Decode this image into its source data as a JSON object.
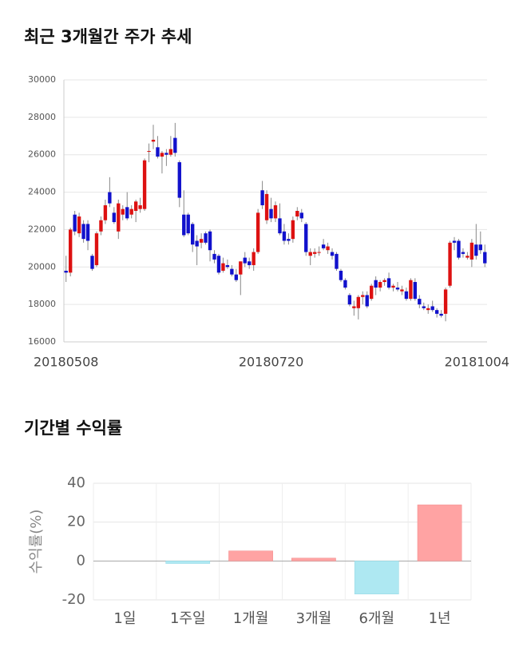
{
  "chart_data": [
    {
      "type": "candlestick",
      "title": "최근 3개월간 주가 추세",
      "up_color": "#dd1111",
      "down_color": "#1111cc",
      "wick_color": "#888888",
      "grid": true,
      "xlim": [
        -0.5,
        96.5
      ],
      "xticks": [
        {
          "value": 0,
          "label": "20180508"
        },
        {
          "value": 47,
          "label": "20180720"
        },
        {
          "value": 96,
          "label": "20181004"
        }
      ],
      "ylim": [
        16000,
        30000
      ],
      "yticks": [
        16000,
        18000,
        20000,
        22000,
        24000,
        26000,
        28000,
        30000
      ],
      "ohlc": [
        [
          19800,
          20600,
          19200,
          19700
        ],
        [
          19700,
          22100,
          19500,
          22000
        ],
        [
          22800,
          23000,
          21700,
          21900
        ],
        [
          21800,
          22900,
          21600,
          22700
        ],
        [
          22300,
          22500,
          21300,
          21500
        ],
        [
          22300,
          22500,
          20900,
          21400
        ],
        [
          20600,
          20700,
          19800,
          19900
        ],
        [
          20100,
          21900,
          20000,
          21800
        ],
        [
          21900,
          22700,
          21700,
          22500
        ],
        [
          22500,
          23600,
          22300,
          23300
        ],
        [
          24000,
          24800,
          23200,
          23400
        ],
        [
          22900,
          23200,
          22300,
          22400
        ],
        [
          21900,
          23600,
          21500,
          23400
        ],
        [
          22800,
          23300,
          22500,
          23100
        ],
        [
          23200,
          24000,
          22500,
          22600
        ],
        [
          22800,
          23300,
          22600,
          23100
        ],
        [
          23000,
          23600,
          22400,
          23500
        ],
        [
          23100,
          23700,
          22900,
          23300
        ],
        [
          23100,
          25800,
          23000,
          25700
        ],
        [
          26200,
          26600,
          25600,
          26200
        ],
        [
          26700,
          27600,
          26300,
          26800
        ],
        [
          26400,
          27000,
          25800,
          25900
        ],
        [
          25900,
          26200,
          25000,
          26100
        ],
        [
          26100,
          26300,
          25400,
          26000
        ],
        [
          26000,
          27000,
          25900,
          26300
        ],
        [
          26900,
          27700,
          25900,
          26100
        ],
        [
          25600,
          25700,
          23200,
          23700
        ],
        [
          22800,
          24100,
          21600,
          21700
        ],
        [
          22800,
          22900,
          21700,
          21800
        ],
        [
          22300,
          22400,
          20800,
          21200
        ],
        [
          21400,
          21700,
          20100,
          21100
        ],
        [
          21300,
          21800,
          21000,
          21500
        ],
        [
          21800,
          21900,
          21200,
          21300
        ],
        [
          21900,
          22000,
          20300,
          20900
        ],
        [
          20700,
          20900,
          20200,
          20400
        ],
        [
          20600,
          20700,
          19600,
          19700
        ],
        [
          19800,
          20500,
          19700,
          20200
        ],
        [
          20100,
          20400,
          19900,
          20000
        ],
        [
          19900,
          20100,
          19500,
          19600
        ],
        [
          19600,
          19900,
          19200,
          19300
        ],
        [
          19600,
          20300,
          18500,
          20300
        ],
        [
          20500,
          20800,
          20000,
          20200
        ],
        [
          20300,
          20500,
          19900,
          20100
        ],
        [
          20100,
          21000,
          19800,
          20800
        ],
        [
          20800,
          23100,
          20700,
          22900
        ],
        [
          24100,
          24600,
          23100,
          23300
        ],
        [
          22500,
          24100,
          22300,
          23900
        ],
        [
          23100,
          23700,
          22400,
          22600
        ],
        [
          22600,
          23500,
          22400,
          23300
        ],
        [
          22600,
          23400,
          21700,
          21800
        ],
        [
          21900,
          22300,
          21200,
          21400
        ],
        [
          21500,
          21800,
          21200,
          21400
        ],
        [
          21500,
          22700,
          21300,
          22500
        ],
        [
          22700,
          23200,
          22500,
          23000
        ],
        [
          22900,
          23100,
          22400,
          22600
        ],
        [
          22300,
          22400,
          20600,
          20800
        ],
        [
          20600,
          21000,
          20100,
          20800
        ],
        [
          20700,
          21000,
          20500,
          20800
        ],
        [
          20800,
          21100,
          20600,
          20800
        ],
        [
          21200,
          21500,
          20900,
          21000
        ],
        [
          20900,
          21300,
          20700,
          21100
        ],
        [
          20800,
          21000,
          20400,
          20600
        ],
        [
          20700,
          20800,
          19800,
          19900
        ],
        [
          19800,
          19900,
          19200,
          19300
        ],
        [
          19300,
          19400,
          18800,
          18900
        ],
        [
          18500,
          18600,
          17900,
          18000
        ],
        [
          17800,
          18200,
          17400,
          17900
        ],
        [
          17800,
          18500,
          17200,
          18400
        ],
        [
          18400,
          18700,
          18000,
          18500
        ],
        [
          18500,
          18700,
          17800,
          17900
        ],
        [
          18300,
          19100,
          18200,
          19000
        ],
        [
          19300,
          19500,
          18500,
          18900
        ],
        [
          18900,
          19300,
          18700,
          19200
        ],
        [
          19200,
          19400,
          19000,
          19300
        ],
        [
          19400,
          19700,
          18800,
          18900
        ],
        [
          18900,
          19100,
          18700,
          19000
        ],
        [
          18900,
          19200,
          18700,
          18800
        ],
        [
          18700,
          19000,
          18500,
          18800
        ],
        [
          18700,
          18900,
          18200,
          18300
        ],
        [
          18300,
          19400,
          18200,
          19300
        ],
        [
          19200,
          19400,
          18200,
          18300
        ],
        [
          18300,
          18500,
          17800,
          18000
        ],
        [
          17900,
          18100,
          17700,
          17800
        ],
        [
          17700,
          18000,
          17500,
          17800
        ],
        [
          17900,
          18200,
          17600,
          17700
        ],
        [
          17700,
          17800,
          17300,
          17500
        ],
        [
          17500,
          17700,
          17300,
          17400
        ],
        [
          17500,
          18900,
          17100,
          18800
        ],
        [
          19000,
          21400,
          18900,
          21300
        ],
        [
          21400,
          21600,
          20900,
          21300
        ],
        [
          21400,
          21500,
          20400,
          20500
        ],
        [
          20800,
          21000,
          20500,
          20700
        ],
        [
          20500,
          20800,
          20400,
          20600
        ],
        [
          20400,
          21500,
          20000,
          21300
        ],
        [
          21200,
          22300,
          20400,
          20600
        ],
        [
          21200,
          21900,
          20700,
          20900
        ],
        [
          20800,
          21200,
          20000,
          20200
        ]
      ]
    },
    {
      "type": "bar",
      "title": "기간별 수익률",
      "y_label": "수익률(%)",
      "categories": [
        "1일",
        "1주일",
        "1개월",
        "3개월",
        "6개월",
        "1년"
      ],
      "values": [
        0,
        -1.3,
        5.2,
        1.5,
        -17,
        28.9
      ],
      "positive_color": "#ffa3a3",
      "negative_color": "#aee8f2",
      "ylim": [
        -20,
        40
      ],
      "yticks": [
        -20,
        0,
        20,
        40
      ],
      "grid": true
    }
  ]
}
